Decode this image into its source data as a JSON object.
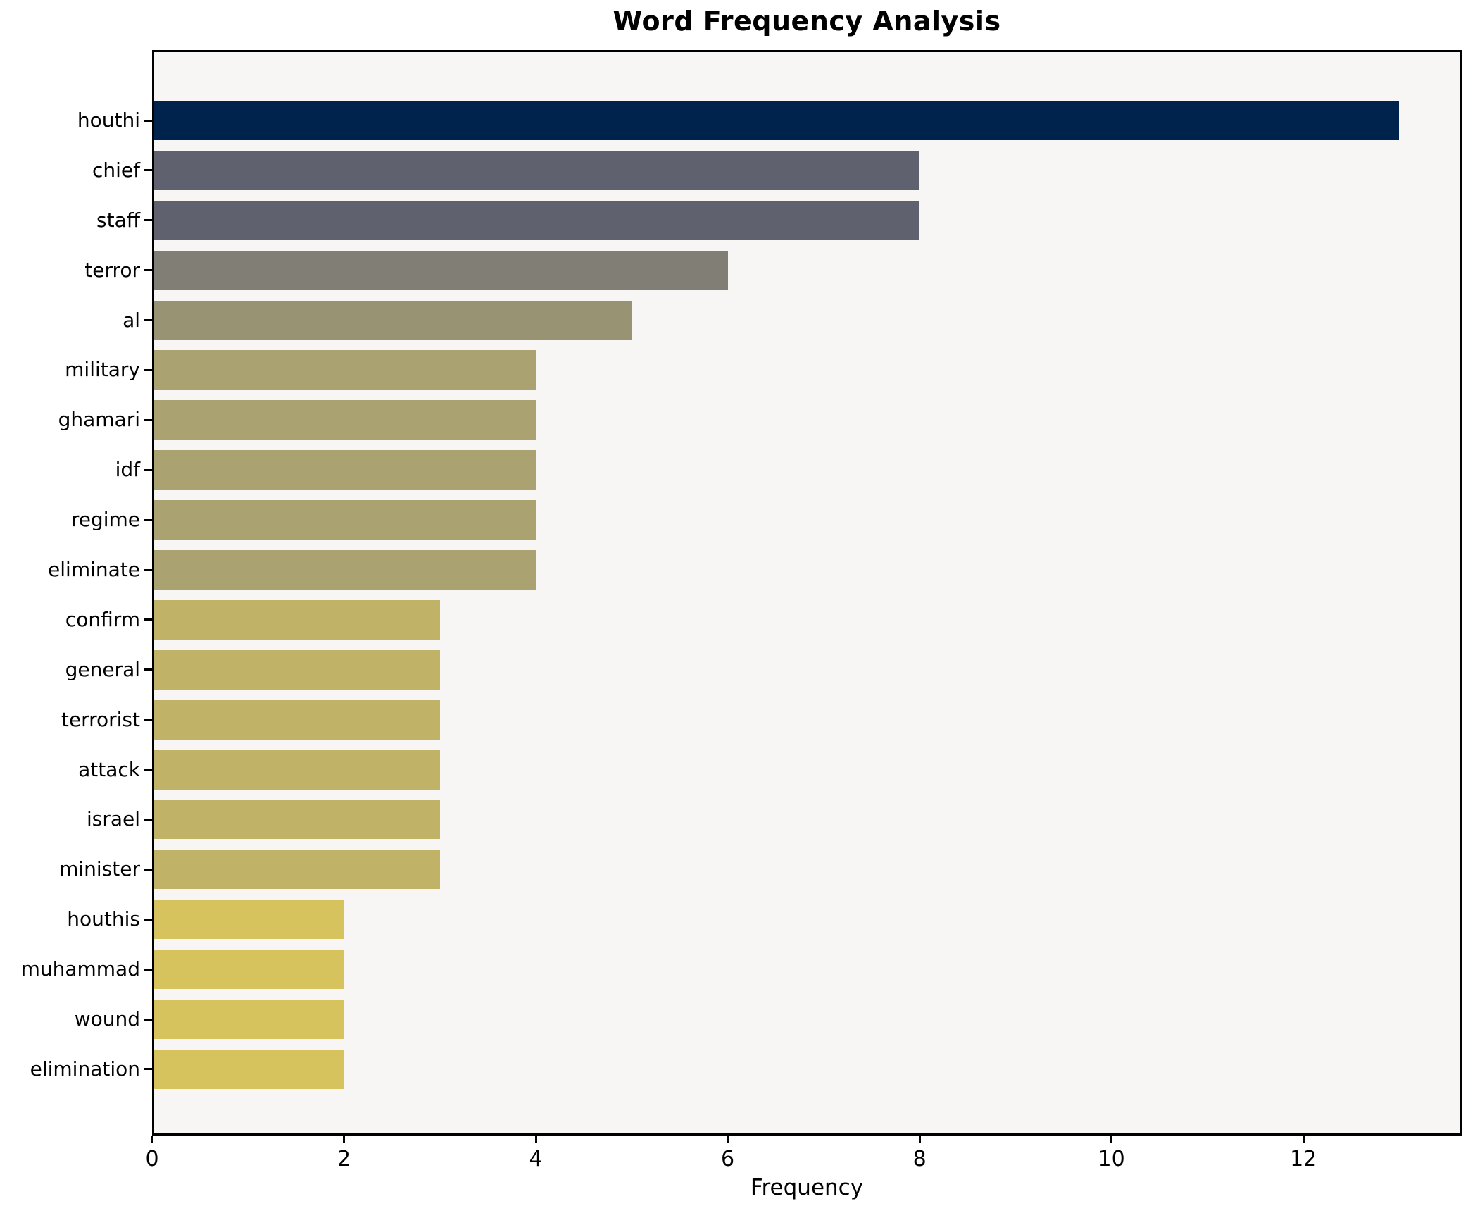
{
  "page": {
    "background": "#ffffff"
  },
  "chart_data": {
    "type": "bar",
    "orientation": "horizontal",
    "title": "Word Frequency Analysis",
    "xlabel": "Frequency",
    "categories": [
      "houthi",
      "chief",
      "staff",
      "terror",
      "al",
      "military",
      "ghamari",
      "idf",
      "regime",
      "eliminate",
      "confirm",
      "general",
      "terrorist",
      "attack",
      "israel",
      "minister",
      "houthis",
      "muhammad",
      "wound",
      "elimination"
    ],
    "values": [
      13,
      8,
      8,
      6,
      5,
      4,
      4,
      4,
      4,
      4,
      3,
      3,
      3,
      3,
      3,
      3,
      2,
      2,
      2,
      2
    ],
    "bar_colors": [
      "#00234e",
      "#5f616f",
      "#5f616f",
      "#817e75",
      "#989372",
      "#aba271",
      "#aba271",
      "#aba271",
      "#aba271",
      "#aba271",
      "#c0b368",
      "#c0b368",
      "#c0b368",
      "#c0b368",
      "#c0b368",
      "#c0b368",
      "#d6c35e",
      "#d6c35e",
      "#d6c35e",
      "#d6c35e"
    ],
    "xlim": [
      0,
      13.65
    ],
    "x_ticks": [
      0,
      2,
      4,
      6,
      8,
      10,
      12
    ],
    "grid": false,
    "legend_position": "none",
    "plot_background": "#f7f6f4",
    "frame_color": "#000000",
    "text_color": "#000000"
  }
}
